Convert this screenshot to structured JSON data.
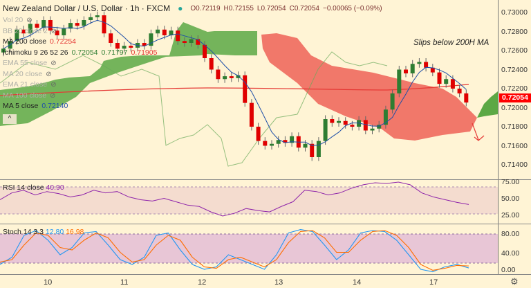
{
  "header": {
    "title": "New Zealand Dollar / U.S. Dollar · 1h · FXCM",
    "open": "O0.72119",
    "high": "H0.72155",
    "low": "L0.72054",
    "close": "C0.72054",
    "change": "−0.00065 (−0.09%)"
  },
  "legend": [
    {
      "label": "Vol 20",
      "value": "",
      "hidden": true
    },
    {
      "label": "BB 20 close 2",
      "value": "",
      "hidden": true
    },
    {
      "label": "MA 200 close",
      "value": "0.72254",
      "hidden": false,
      "color": "#e53935"
    },
    {
      "label": "Ichimoku 9 26 52 26",
      "values": [
        "0.72054",
        "0.71797",
        "0.71905"
      ],
      "hidden": false
    },
    {
      "label": "EMA 55 close",
      "value": "",
      "hidden": true
    },
    {
      "label": "MA 20 close",
      "value": "",
      "hidden": true
    },
    {
      "label": "EMA 21 close",
      "value": "",
      "hidden": true
    },
    {
      "label": "MA 100 close",
      "value": "",
      "hidden": true
    },
    {
      "label": "MA 5 close",
      "value": "0.72140",
      "hidden": false,
      "color": "#1e4fa8"
    }
  ],
  "collapse_label": "^",
  "annotation": "Slips below 200H MA",
  "price_axis": [
    "0.73000",
    "0.72800",
    "0.72600",
    "0.72400",
    "0.72200",
    "0.72000",
    "0.71800",
    "0.71600",
    "0.71400"
  ],
  "last_price": "0.72054",
  "rsi": {
    "label": "RSI 14 close",
    "value": "40.90",
    "axis": [
      "75.00",
      "50.00",
      "25.00"
    ]
  },
  "stoch": {
    "label": "Stoch 14 3 3",
    "k": "12.80",
    "d": "16.98",
    "axis": [
      "80.00",
      "40.00",
      "0.00"
    ]
  },
  "time_axis": [
    "10",
    "11",
    "12",
    "13",
    "14",
    "17"
  ],
  "colors": {
    "up": "#2e7d32",
    "down": "#e00000",
    "ma200": "#e53935",
    "ma5": "#1e4fa8",
    "cloud_green": "#5ca845",
    "cloud_red": "#f06a5e"
  },
  "chart_data": {
    "type": "candlestick",
    "closes": [
      0.7262,
      0.727,
      0.7282,
      0.7278,
      0.7288,
      0.7284,
      0.7292,
      0.7281,
      0.7276,
      0.7283,
      0.7289,
      0.7286,
      0.7292,
      0.7295,
      0.7297,
      0.7278,
      0.7268,
      0.7262,
      0.7265,
      0.7263,
      0.7268,
      0.7265,
      0.7278,
      0.7282,
      0.7276,
      0.7281,
      0.727,
      0.7268,
      0.7272,
      0.7266,
      0.7252,
      0.724,
      0.723,
      0.7233,
      0.7231,
      0.7234,
      0.7205,
      0.718,
      0.7165,
      0.716,
      0.7162,
      0.7166,
      0.7163,
      0.717,
      0.7158,
      0.7162,
      0.7148,
      0.7165,
      0.7188,
      0.7184,
      0.7186,
      0.7182,
      0.718,
      0.7187,
      0.7176,
      0.7178,
      0.7182,
      0.7198,
      0.7215,
      0.724,
      0.7236,
      0.7246,
      0.7248,
      0.7242,
      0.7237,
      0.7225,
      0.723,
      0.722,
      0.7215,
      0.72054
    ],
    "ylim": [
      0.7135,
      0.7305
    ],
    "rsi": [
      48,
      58,
      62,
      55,
      60,
      57,
      52,
      55,
      62,
      58,
      60,
      52,
      48,
      46,
      50,
      45,
      40,
      38,
      30,
      24,
      28,
      35,
      32,
      30,
      38,
      45,
      62,
      60,
      55,
      58,
      65,
      70,
      73,
      72,
      74,
      70,
      58,
      52,
      48,
      44,
      41
    ],
    "stoch_k": [
      20,
      35,
      80,
      90,
      70,
      40,
      55,
      85,
      88,
      60,
      30,
      20,
      35,
      80,
      85,
      50,
      20,
      10,
      15,
      40,
      30,
      20,
      10,
      40,
      85,
      92,
      88,
      60,
      30,
      50,
      85,
      90,
      88,
      70,
      40,
      10,
      5,
      15,
      20,
      12.8
    ],
    "stoch_d": [
      25,
      30,
      60,
      85,
      80,
      55,
      50,
      70,
      85,
      75,
      45,
      25,
      30,
      60,
      80,
      70,
      35,
      15,
      12,
      30,
      35,
      25,
      15,
      30,
      65,
      88,
      90,
      75,
      45,
      45,
      70,
      88,
      90,
      80,
      55,
      20,
      8,
      12,
      18,
      16.98
    ]
  }
}
